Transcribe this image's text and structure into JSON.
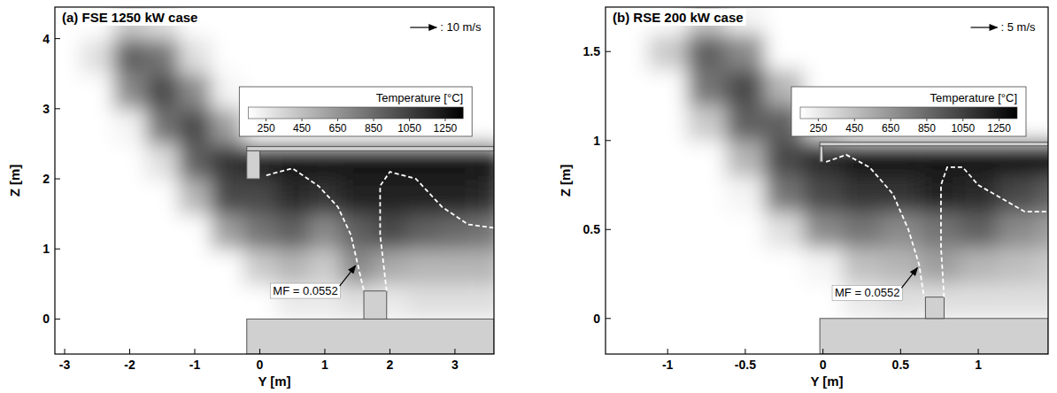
{
  "chart_data": [
    {
      "type": "heatmap",
      "title": "(a) FSE 1250 kW case",
      "x_label": "Y [m]",
      "y_label": "Z [m]",
      "xlim": [
        -3.15,
        3.6
      ],
      "xticks": [
        -3,
        -2,
        -1,
        0,
        1,
        2,
        3
      ],
      "ylim": [
        -0.5,
        4.45
      ],
      "yticks": [
        0,
        1,
        2,
        3,
        4
      ],
      "x": [
        -3,
        -2.5,
        -2,
        -1.5,
        -1,
        -0.5,
        0,
        0.5,
        1,
        1.5,
        2,
        2.5,
        3,
        3.5
      ],
      "y": [
        -0.25,
        0.25,
        0.75,
        1.25,
        1.75,
        2.25,
        2.75,
        3.25,
        3.75,
        4.25
      ],
      "cells": [
        [
          50,
          50,
          50,
          50,
          50,
          50,
          50,
          50,
          50,
          50,
          50,
          50,
          50,
          50
        ],
        [
          50,
          50,
          50,
          50,
          50,
          50,
          50,
          250,
          250,
          300,
          250,
          300,
          300,
          300
        ],
        [
          50,
          50,
          50,
          50,
          50,
          150,
          400,
          500,
          400,
          700,
          550,
          500,
          500,
          500
        ],
        [
          50,
          50,
          50,
          50,
          150,
          600,
          800,
          900,
          700,
          900,
          1000,
          900,
          850,
          800
        ],
        [
          50,
          50,
          50,
          100,
          500,
          1000,
          1000,
          1150,
          1100,
          1200,
          1200,
          1200,
          1200,
          1150
        ],
        [
          50,
          50,
          50,
          300,
          900,
          1100,
          1200,
          1250,
          1250,
          1250,
          1250,
          1250,
          1250,
          1250
        ],
        [
          50,
          50,
          200,
          800,
          1000,
          600,
          100,
          50,
          50,
          50,
          50,
          50,
          50,
          50
        ],
        [
          50,
          100,
          700,
          1000,
          700,
          200,
          50,
          50,
          50,
          50,
          50,
          50,
          50,
          50
        ],
        [
          50,
          300,
          900,
          800,
          300,
          50,
          50,
          50,
          50,
          50,
          50,
          50,
          50,
          50
        ],
        [
          50,
          150,
          400,
          300,
          100,
          50,
          50,
          50,
          50,
          50,
          50,
          50,
          50,
          50
        ]
      ],
      "colorbar": {
        "label": "Temperature [°C]",
        "range": [
          150,
          1350
        ],
        "ticks": [
          250,
          450,
          650,
          850,
          1050,
          1250
        ]
      },
      "reference_vector_label": ": 10 m/s",
      "solids": [
        [
          -0.2,
          -0.5,
          3.6,
          0
        ],
        [
          -0.2,
          2.0,
          0,
          2.4
        ],
        [
          -0.2,
          2.4,
          3.6,
          2.46
        ],
        [
          1.6,
          0,
          1.95,
          0.4
        ]
      ],
      "mf_contours": [
        {
          "x": [
            0.1,
            0.5,
            0.9,
            1.2,
            1.4,
            1.5,
            1.6
          ],
          "y": [
            2.05,
            2.15,
            1.9,
            1.6,
            1.2,
            0.8,
            0.4
          ]
        },
        {
          "x": [
            1.95,
            1.85,
            1.85,
            2.0,
            2.4,
            2.8,
            3.2,
            3.6
          ],
          "y": [
            0.4,
            1.2,
            1.9,
            2.1,
            2.0,
            1.6,
            1.35,
            1.3
          ]
        }
      ],
      "annotation": "MF = 0.0552"
    },
    {
      "type": "heatmap",
      "title": "(b) RSE 200 kW case",
      "x_label": "Y [m]",
      "y_label": "Z [m]",
      "xlim": [
        -1.4,
        1.45
      ],
      "xticks": [
        -1,
        -0.5,
        0,
        0.5,
        1
      ],
      "ylim": [
        -0.2,
        1.75
      ],
      "yticks": [
        0,
        0.5,
        1,
        1.5
      ],
      "x": [
        -1.25,
        -1,
        -0.75,
        -0.5,
        -0.25,
        0,
        0.25,
        0.5,
        0.75,
        1,
        1.25,
        1.5
      ],
      "y": [
        -0.1,
        0.1,
        0.3,
        0.5,
        0.7,
        0.9,
        1.1,
        1.3,
        1.5,
        1.7
      ],
      "cells": [
        [
          50,
          50,
          50,
          50,
          50,
          50,
          50,
          50,
          50,
          50,
          50,
          50
        ],
        [
          50,
          50,
          50,
          50,
          50,
          50,
          250,
          300,
          300,
          300,
          300,
          300
        ],
        [
          50,
          50,
          50,
          50,
          50,
          200,
          450,
          500,
          600,
          500,
          450,
          400
        ],
        [
          50,
          50,
          50,
          50,
          300,
          700,
          800,
          700,
          800,
          900,
          700,
          600
        ],
        [
          50,
          50,
          50,
          200,
          800,
          1000,
          1100,
          1100,
          1200,
          1150,
          1000,
          900
        ],
        [
          50,
          50,
          100,
          500,
          1000,
          1150,
          1250,
          1250,
          1250,
          1250,
          1250,
          1250
        ],
        [
          50,
          50,
          400,
          900,
          900,
          300,
          50,
          50,
          50,
          50,
          50,
          50
        ],
        [
          50,
          150,
          800,
          1000,
          500,
          50,
          50,
          50,
          50,
          50,
          50,
          50
        ],
        [
          50,
          400,
          900,
          700,
          100,
          50,
          50,
          50,
          50,
          50,
          50,
          50
        ],
        [
          50,
          150,
          400,
          200,
          50,
          50,
          50,
          50,
          50,
          50,
          50,
          50
        ]
      ],
      "colorbar": {
        "label": "Temperature [°C]",
        "range": [
          150,
          1350
        ],
        "ticks": [
          250,
          450,
          650,
          850,
          1050,
          1250
        ]
      },
      "reference_vector_label": ": 5 m/s",
      "solids": [
        [
          -0.02,
          -0.2,
          1.45,
          0
        ],
        [
          -0.02,
          0.88,
          0,
          0.97
        ],
        [
          -0.02,
          0.97,
          1.45,
          0.99
        ],
        [
          0.66,
          0,
          0.78,
          0.12
        ]
      ],
      "mf_contours": [
        {
          "x": [
            0.02,
            0.15,
            0.3,
            0.45,
            0.55,
            0.62,
            0.65
          ],
          "y": [
            0.88,
            0.92,
            0.85,
            0.7,
            0.5,
            0.3,
            0.12
          ]
        },
        {
          "x": [
            0.78,
            0.76,
            0.76,
            0.8,
            0.9,
            1.0,
            1.1,
            1.2,
            1.3,
            1.45
          ],
          "y": [
            0.12,
            0.4,
            0.75,
            0.85,
            0.85,
            0.75,
            0.7,
            0.65,
            0.6,
            0.6
          ]
        }
      ],
      "annotation": "MF = 0.0552"
    }
  ]
}
